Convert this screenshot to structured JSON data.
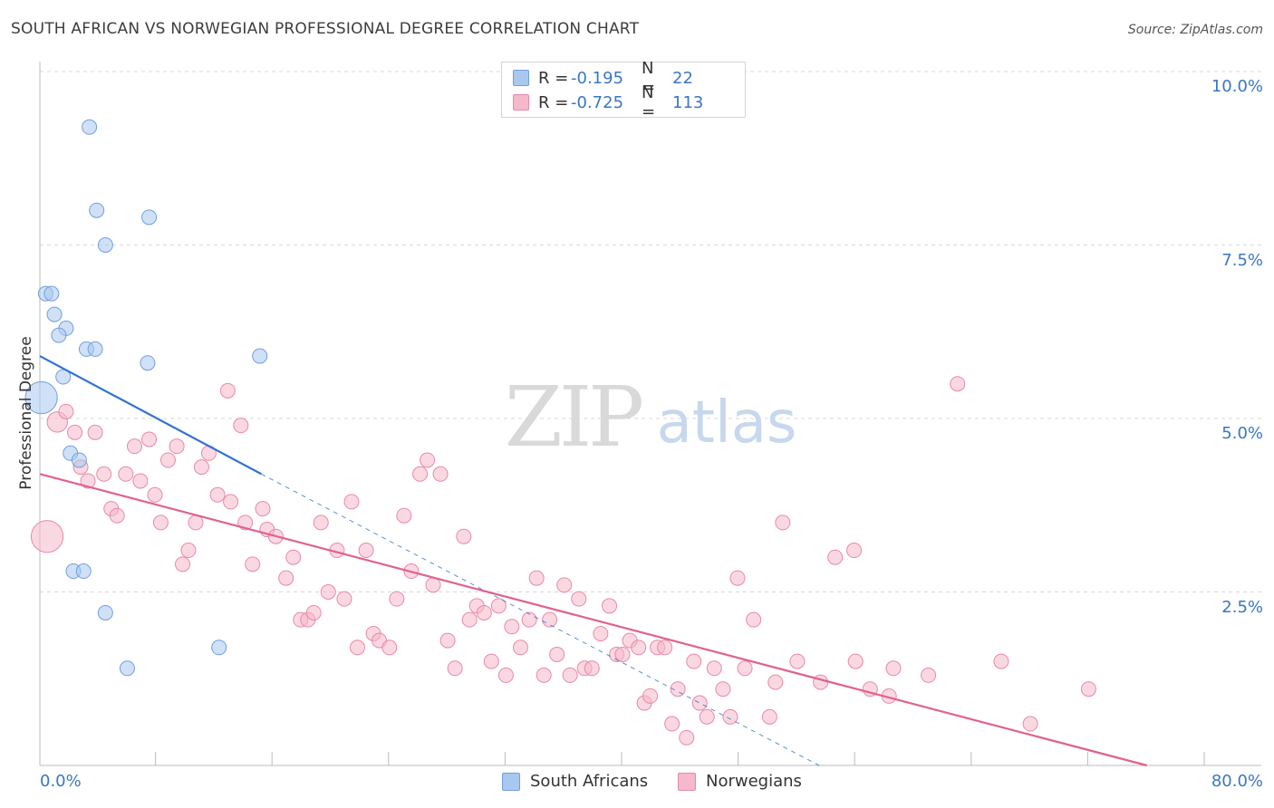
{
  "header": {
    "title": "SOUTH AFRICAN VS NORWEGIAN PROFESSIONAL DEGREE CORRELATION CHART",
    "source": "Source: ZipAtlas.com"
  },
  "watermark": {
    "zip": "ZIP",
    "atlas": "atlas"
  },
  "colors": {
    "blue_fill": "#a9c8f0",
    "blue_stroke": "#6f9fdb",
    "blue_line": "#3272d1",
    "pink_fill": "#f6b8cb",
    "pink_stroke": "#e889a8",
    "pink_line": "#e0628d",
    "accent_text": "#3a76c4",
    "grid": "#d8d8d8"
  },
  "legend": {
    "rows": [
      {
        "r_label": "R =",
        "r_value": "-0.195",
        "n_label": "N =",
        "n_value": "22"
      },
      {
        "r_label": "R =",
        "r_value": "-0.725",
        "n_label": "N =",
        "n_value": "113"
      }
    ],
    "bottom": [
      {
        "label": "South Africans"
      },
      {
        "label": "Norwegians"
      }
    ]
  },
  "chart_data": {
    "type": "scatter",
    "title": "SOUTH AFRICAN VS NORWEGIAN PROFESSIONAL DEGREE CORRELATION CHART",
    "xlabel": "",
    "ylabel": "Professional Degree",
    "xlim": [
      0,
      80
    ],
    "ylim": [
      0,
      10
    ],
    "x_tick_labels": [
      "0.0%",
      "80.0%"
    ],
    "y_tick_labels": [
      "2.5%",
      "5.0%",
      "7.5%",
      "10.0%"
    ],
    "y_ticks": [
      2.5,
      5.0,
      7.5,
      10.0
    ],
    "x_minor_ticks": [
      8,
      16,
      24,
      32,
      40,
      48,
      56,
      64,
      72,
      80
    ],
    "series": [
      {
        "name": "South Africans",
        "r": -0.195,
        "n": 22,
        "trend": {
          "x0": 0,
          "y0": 5.9,
          "x1": 15.2,
          "y1": 4.2,
          "dash_to_x": 53.5,
          "dash_to_y": 0
        },
        "points": [
          [
            3.4,
            9.2
          ],
          [
            3.9,
            8.0
          ],
          [
            7.5,
            7.9
          ],
          [
            4.5,
            7.5
          ],
          [
            0.4,
            6.8
          ],
          [
            0.8,
            6.8
          ],
          [
            1.0,
            6.5
          ],
          [
            1.8,
            6.3
          ],
          [
            1.3,
            6.2
          ],
          [
            3.2,
            6.0
          ],
          [
            3.8,
            6.0
          ],
          [
            7.4,
            5.8
          ],
          [
            15.1,
            5.9
          ],
          [
            1.6,
            5.6
          ],
          [
            0.1,
            5.3
          ],
          [
            2.1,
            4.5
          ],
          [
            2.7,
            4.4
          ],
          [
            2.3,
            2.8
          ],
          [
            3.0,
            2.8
          ],
          [
            4.5,
            2.2
          ],
          [
            12.3,
            1.7
          ],
          [
            6.0,
            1.4
          ]
        ],
        "sizes": [
          1,
          1,
          1,
          1,
          1,
          1,
          1,
          1,
          1,
          1,
          1,
          1,
          1,
          1,
          2.2,
          1,
          1,
          1,
          1,
          1,
          1,
          1
        ]
      },
      {
        "name": "Norwegians",
        "r": -0.725,
        "n": 113,
        "trend": {
          "x0": 0,
          "y0": 4.2,
          "x1": 76.0,
          "y1": 0.0
        },
        "points": [
          [
            0.5,
            3.3
          ],
          [
            1.2,
            4.95
          ],
          [
            1.8,
            5.1
          ],
          [
            2.4,
            4.8
          ],
          [
            2.8,
            4.3
          ],
          [
            3.3,
            4.1
          ],
          [
            3.8,
            4.8
          ],
          [
            4.4,
            4.2
          ],
          [
            4.9,
            3.7
          ],
          [
            5.3,
            3.6
          ],
          [
            5.9,
            4.2
          ],
          [
            6.5,
            4.6
          ],
          [
            6.9,
            4.1
          ],
          [
            7.5,
            4.7
          ],
          [
            7.9,
            3.9
          ],
          [
            8.3,
            3.5
          ],
          [
            8.8,
            4.4
          ],
          [
            9.4,
            4.6
          ],
          [
            9.8,
            2.9
          ],
          [
            10.2,
            3.1
          ],
          [
            10.7,
            3.5
          ],
          [
            11.1,
            4.3
          ],
          [
            11.6,
            4.5
          ],
          [
            12.2,
            3.9
          ],
          [
            12.9,
            5.4
          ],
          [
            13.1,
            3.8
          ],
          [
            13.8,
            4.9
          ],
          [
            14.1,
            3.5
          ],
          [
            14.6,
            2.9
          ],
          [
            15.3,
            3.7
          ],
          [
            15.6,
            3.4
          ],
          [
            16.2,
            3.3
          ],
          [
            16.9,
            2.7
          ],
          [
            17.4,
            3.0
          ],
          [
            17.9,
            2.1
          ],
          [
            18.4,
            2.1
          ],
          [
            18.8,
            2.2
          ],
          [
            19.3,
            3.5
          ],
          [
            19.8,
            2.5
          ],
          [
            20.4,
            3.1
          ],
          [
            20.9,
            2.4
          ],
          [
            21.4,
            3.8
          ],
          [
            21.8,
            1.7
          ],
          [
            22.4,
            3.1
          ],
          [
            22.9,
            1.9
          ],
          [
            23.3,
            1.8
          ],
          [
            24.0,
            1.7
          ],
          [
            24.5,
            2.4
          ],
          [
            25.0,
            3.6
          ],
          [
            25.5,
            2.8
          ],
          [
            26.1,
            4.2
          ],
          [
            26.6,
            4.4
          ],
          [
            27.0,
            2.6
          ],
          [
            27.5,
            4.2
          ],
          [
            28.0,
            1.8
          ],
          [
            28.5,
            1.4
          ],
          [
            29.1,
            3.3
          ],
          [
            29.5,
            2.1
          ],
          [
            30.0,
            2.3
          ],
          [
            30.5,
            2.2
          ],
          [
            31.0,
            1.5
          ],
          [
            31.5,
            2.3
          ],
          [
            32.0,
            1.3
          ],
          [
            32.4,
            2.0
          ],
          [
            33.0,
            1.7
          ],
          [
            33.6,
            2.1
          ],
          [
            34.1,
            2.7
          ],
          [
            34.6,
            1.3
          ],
          [
            35.0,
            2.1
          ],
          [
            35.5,
            1.6
          ],
          [
            36.0,
            2.6
          ],
          [
            36.4,
            1.3
          ],
          [
            37.0,
            2.4
          ],
          [
            37.4,
            1.4
          ],
          [
            37.9,
            1.4
          ],
          [
            38.5,
            1.9
          ],
          [
            39.1,
            2.3
          ],
          [
            39.6,
            1.6
          ],
          [
            40.0,
            1.6
          ],
          [
            40.5,
            1.8
          ],
          [
            41.1,
            1.7
          ],
          [
            41.5,
            0.9
          ],
          [
            41.9,
            1.0
          ],
          [
            42.4,
            1.7
          ],
          [
            42.9,
            1.7
          ],
          [
            43.4,
            0.6
          ],
          [
            43.8,
            1.1
          ],
          [
            44.4,
            0.4
          ],
          [
            44.9,
            1.5
          ],
          [
            45.3,
            0.9
          ],
          [
            45.8,
            0.7
          ],
          [
            46.3,
            1.4
          ],
          [
            46.9,
            1.1
          ],
          [
            47.4,
            0.7
          ],
          [
            47.9,
            2.7
          ],
          [
            48.4,
            1.4
          ],
          [
            49.0,
            2.1
          ],
          [
            50.1,
            0.7
          ],
          [
            50.5,
            1.2
          ],
          [
            51.0,
            3.5
          ],
          [
            52.0,
            1.5
          ],
          [
            53.6,
            1.2
          ],
          [
            54.6,
            3.0
          ],
          [
            56.0,
            1.5
          ],
          [
            55.9,
            3.1
          ],
          [
            57.0,
            1.1
          ],
          [
            58.3,
            1.0
          ],
          [
            58.6,
            1.4
          ],
          [
            61.0,
            1.3
          ],
          [
            63.0,
            5.5
          ],
          [
            66.0,
            1.5
          ],
          [
            68.0,
            0.6
          ],
          [
            72.0,
            1.1
          ]
        ],
        "sizes": [
          2.2,
          1.4,
          1,
          1,
          1,
          1,
          1,
          1,
          1,
          1,
          1,
          1,
          1,
          1,
          1,
          1,
          1,
          1,
          1,
          1,
          1,
          1,
          1,
          1,
          1,
          1,
          1,
          1,
          1,
          1,
          1,
          1,
          1,
          1,
          1,
          1,
          1,
          1,
          1,
          1,
          1,
          1,
          1,
          1,
          1,
          1,
          1,
          1,
          1,
          1,
          1,
          1,
          1,
          1,
          1,
          1,
          1,
          1,
          1,
          1,
          1,
          1,
          1,
          1,
          1,
          1,
          1,
          1,
          1,
          1,
          1,
          1,
          1,
          1,
          1,
          1,
          1,
          1,
          1,
          1,
          1,
          1,
          1,
          1,
          1,
          1,
          1,
          1,
          1,
          1,
          1,
          1,
          1,
          1,
          1,
          1,
          1,
          1,
          1,
          1,
          1,
          1,
          1,
          1,
          1,
          1,
          1,
          1,
          1,
          1,
          1,
          1,
          1
        ]
      }
    ]
  }
}
